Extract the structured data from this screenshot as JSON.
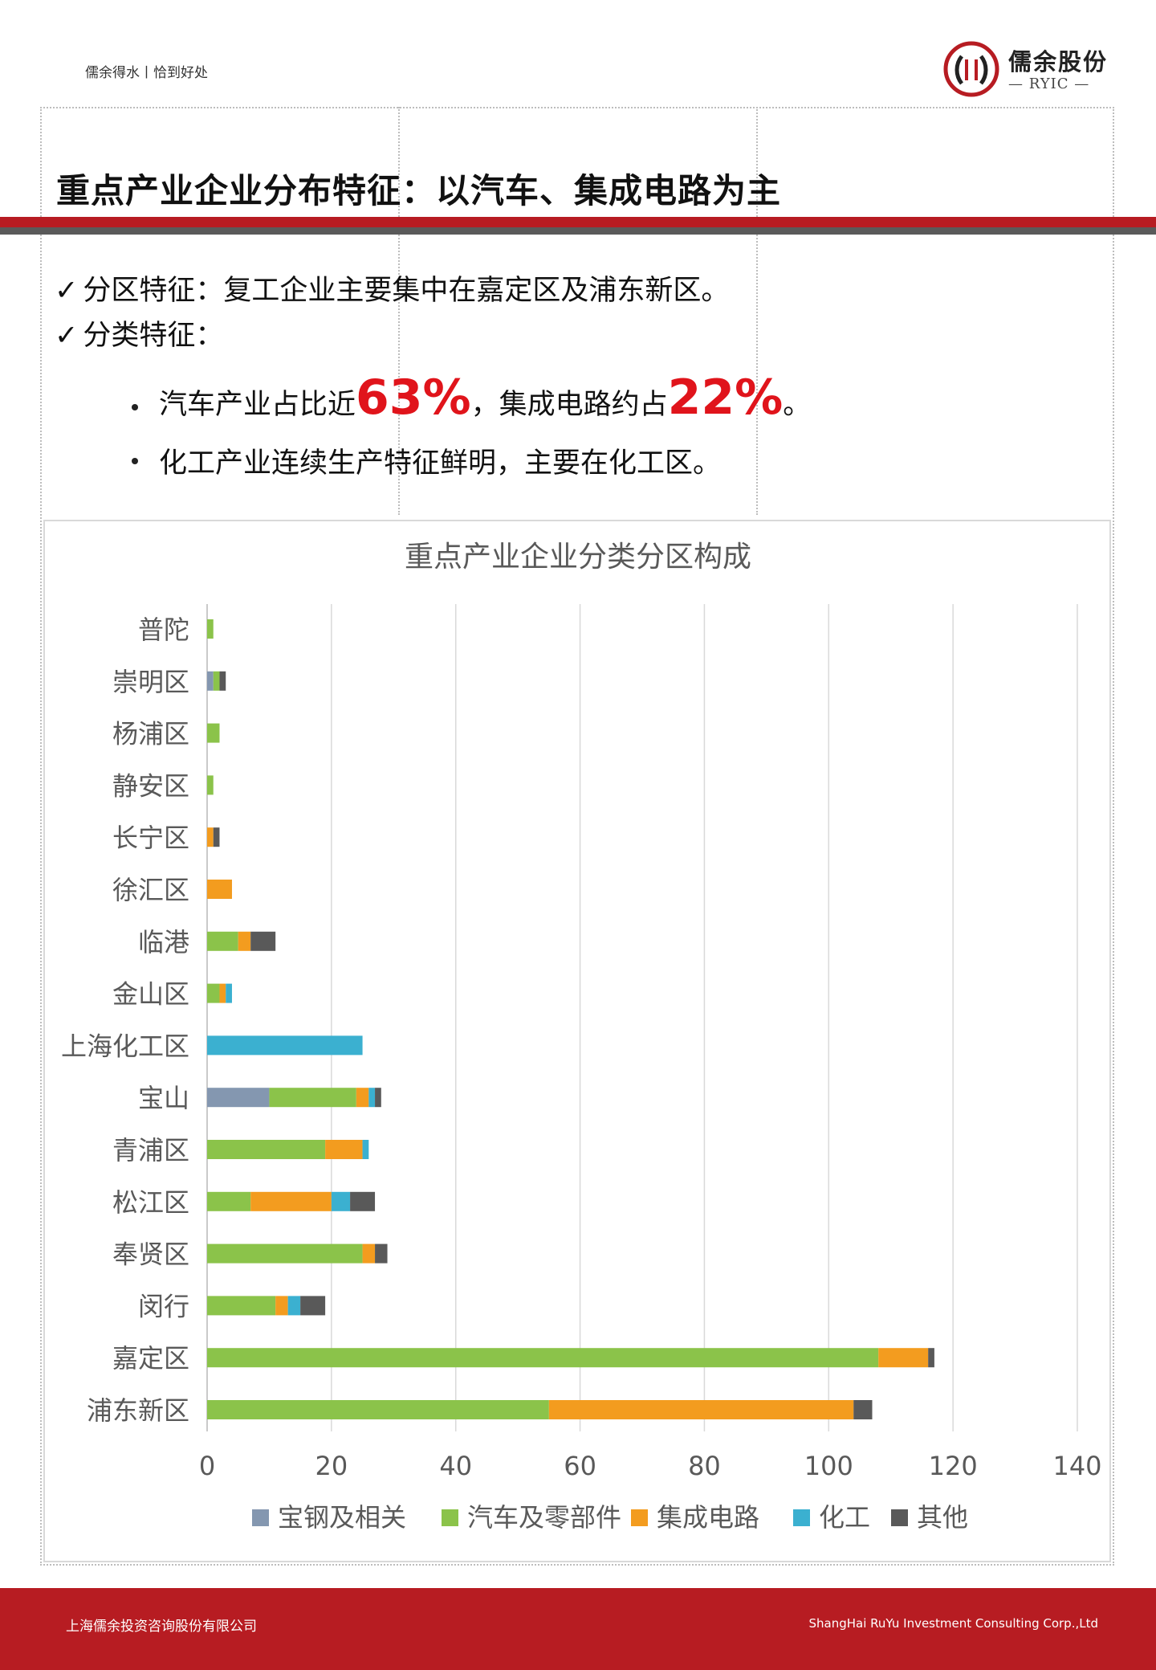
{
  "header": {
    "tagline": "儒余得水丨恰到好处",
    "logo_name": "儒余股份",
    "logo_sub": "— RYIC —"
  },
  "title": "重点产业企业分布特征：以汽车、集成电路为主",
  "points": {
    "p1": "分区特征：复工企业主要集中在嘉定区及浦东新区。",
    "p2": "分类特征：",
    "b1_pre": "汽车产业占比近",
    "b1_auto": "63%",
    "b1_mid": "，集成电路约占",
    "b1_ic": "22%",
    "b1_end": "。",
    "b2": "化工产业连续生产特征鲜明，主要在化工区。"
  },
  "chart_data": {
    "type": "bar",
    "orientation": "horizontal",
    "stacked": true,
    "title": "重点产业企业分类分区构成",
    "xlabel": "",
    "ylabel": "",
    "categories": [
      "普陀",
      "崇明区",
      "杨浦区",
      "静安区",
      "长宁区",
      "徐汇区",
      "临港",
      "金山区",
      "上海化工区",
      "宝山",
      "青浦区",
      "松江区",
      "奉贤区",
      "闵行",
      "嘉定区",
      "浦东新区"
    ],
    "series": [
      {
        "name": "宝钢及相关",
        "color": "#8497b0",
        "values": [
          0,
          1,
          0,
          0,
          0,
          0,
          0,
          0,
          0,
          10,
          0,
          0,
          0,
          0,
          0,
          0
        ]
      },
      {
        "name": "汽车及零部件",
        "color": "#8bc34a",
        "values": [
          1,
          1,
          2,
          1,
          0,
          0,
          5,
          2,
          0,
          14,
          19,
          7,
          25,
          11,
          108,
          55
        ]
      },
      {
        "name": "集成电路",
        "color": "#f39c1f",
        "values": [
          0,
          0,
          0,
          0,
          1,
          4,
          2,
          1,
          0,
          2,
          6,
          13,
          2,
          2,
          8,
          49
        ]
      },
      {
        "name": "化工",
        "color": "#3bb0d0",
        "values": [
          0,
          0,
          0,
          0,
          0,
          0,
          0,
          1,
          25,
          1,
          1,
          3,
          0,
          2,
          0,
          0
        ]
      },
      {
        "name": "其他",
        "color": "#595959",
        "values": [
          0,
          1,
          0,
          0,
          1,
          0,
          4,
          0,
          0,
          1,
          0,
          4,
          2,
          4,
          1,
          3
        ]
      }
    ],
    "xlim": [
      0,
      140
    ],
    "xticks": [
      "0",
      "20",
      "40",
      "60",
      "80",
      "100",
      "120",
      "140"
    ],
    "grid": true,
    "legend_position": "bottom"
  },
  "footer": {
    "left": "上海儒余投资咨询股份有限公司",
    "right": "ShangHai RuYu Investment Consulting Corp.,Ltd"
  }
}
